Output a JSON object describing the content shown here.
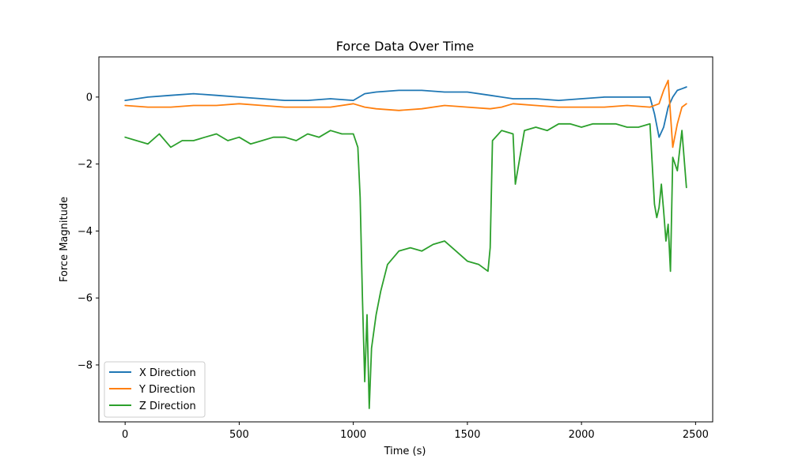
{
  "chart_data": {
    "type": "line",
    "title": "Force Data Over Time",
    "xlabel": "Time (s)",
    "ylabel": "Force Magnitude",
    "xlim": [
      -115,
      2575
    ],
    "ylim": [
      -9.7,
      1.2
    ],
    "xticks": [
      0,
      500,
      1000,
      1500,
      2000,
      2500
    ],
    "yticks": [
      0,
      -2,
      -4,
      -6,
      -8
    ],
    "grid": false,
    "legend_position": "lower-left",
    "series": [
      {
        "name": "X Direction",
        "color": "#1f77b4",
        "x": [
          0,
          100,
          200,
          300,
          400,
          500,
          600,
          700,
          800,
          900,
          1000,
          1050,
          1100,
          1200,
          1300,
          1400,
          1500,
          1600,
          1700,
          1800,
          1900,
          2000,
          2100,
          2200,
          2300,
          2320,
          2340,
          2360,
          2380,
          2400,
          2420,
          2440,
          2460
        ],
        "y": [
          -0.1,
          0.0,
          0.05,
          0.1,
          0.05,
          0.0,
          -0.05,
          -0.1,
          -0.1,
          -0.05,
          -0.1,
          0.1,
          0.15,
          0.2,
          0.2,
          0.15,
          0.15,
          0.05,
          -0.05,
          -0.05,
          -0.1,
          -0.05,
          0.0,
          0.0,
          0.0,
          -0.5,
          -1.2,
          -0.9,
          -0.3,
          0.0,
          0.2,
          0.25,
          0.3
        ]
      },
      {
        "name": "Y Direction",
        "color": "#ff7f0e",
        "x": [
          0,
          100,
          200,
          300,
          400,
          500,
          600,
          700,
          800,
          900,
          1000,
          1050,
          1100,
          1200,
          1300,
          1400,
          1500,
          1600,
          1650,
          1700,
          1800,
          1900,
          2000,
          2100,
          2200,
          2300,
          2340,
          2360,
          2380,
          2400,
          2420,
          2440,
          2460
        ],
        "y": [
          -0.25,
          -0.3,
          -0.3,
          -0.25,
          -0.25,
          -0.2,
          -0.25,
          -0.3,
          -0.3,
          -0.3,
          -0.2,
          -0.3,
          -0.35,
          -0.4,
          -0.35,
          -0.25,
          -0.3,
          -0.35,
          -0.3,
          -0.2,
          -0.25,
          -0.3,
          -0.3,
          -0.3,
          -0.25,
          -0.3,
          -0.2,
          0.2,
          0.5,
          -1.5,
          -0.8,
          -0.3,
          -0.2
        ]
      },
      {
        "name": "Z Direction",
        "color": "#2ca02c",
        "x": [
          0,
          50,
          100,
          150,
          200,
          250,
          300,
          350,
          400,
          450,
          500,
          550,
          600,
          650,
          700,
          750,
          800,
          850,
          900,
          950,
          1000,
          1020,
          1030,
          1040,
          1050,
          1060,
          1070,
          1080,
          1100,
          1120,
          1150,
          1200,
          1250,
          1300,
          1350,
          1400,
          1450,
          1500,
          1550,
          1590,
          1600,
          1610,
          1650,
          1700,
          1710,
          1750,
          1800,
          1850,
          1900,
          1950,
          2000,
          2050,
          2100,
          2150,
          2200,
          2250,
          2300,
          2320,
          2330,
          2340,
          2350,
          2360,
          2370,
          2380,
          2390,
          2400,
          2420,
          2440,
          2460
        ],
        "y": [
          -1.2,
          -1.3,
          -1.4,
          -1.1,
          -1.5,
          -1.3,
          -1.3,
          -1.2,
          -1.1,
          -1.3,
          -1.2,
          -1.4,
          -1.3,
          -1.2,
          -1.2,
          -1.3,
          -1.1,
          -1.2,
          -1.0,
          -1.1,
          -1.1,
          -1.5,
          -3.0,
          -6.0,
          -8.5,
          -6.5,
          -9.3,
          -7.5,
          -6.5,
          -5.8,
          -5.0,
          -4.6,
          -4.5,
          -4.6,
          -4.4,
          -4.3,
          -4.6,
          -4.9,
          -5.0,
          -5.2,
          -4.5,
          -1.3,
          -1.0,
          -1.1,
          -2.6,
          -1.0,
          -0.9,
          -1.0,
          -0.8,
          -0.8,
          -0.9,
          -0.8,
          -0.8,
          -0.8,
          -0.9,
          -0.9,
          -0.8,
          -3.2,
          -3.6,
          -3.3,
          -2.6,
          -3.4,
          -4.3,
          -3.8,
          -5.2,
          -1.8,
          -2.2,
          -1.0,
          -2.7
        ]
      }
    ]
  }
}
